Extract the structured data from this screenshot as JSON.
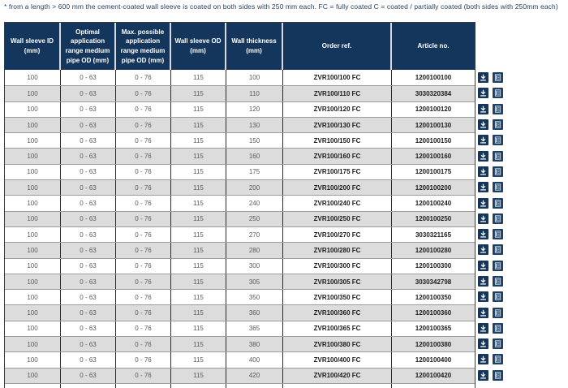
{
  "note": "* from a length > 600 mm the cement-coated wall sleeve is coated on both sides with 250 mm each. FC = fully coated C = coated / partially coated (both sides with 250mm each)",
  "table": {
    "columns": [
      "Wall sleeve ID\n(mm)",
      "Optimal\napplication\nrange medium\npipe OD (mm)",
      "Max. possible\napplication\nrange medium\npipe OD (mm)",
      "Wall sleeve OD\n(mm)",
      "Wall thickness\n(mm)",
      "Order ref.",
      "Article no."
    ],
    "rows": [
      [
        "100",
        "0 - 63",
        "0 - 76",
        "115",
        "100",
        "ZVR100/100 FC",
        "1200100100"
      ],
      [
        "100",
        "0 - 63",
        "0 - 76",
        "115",
        "110",
        "ZVR100/110 FC",
        "3030320384"
      ],
      [
        "100",
        "0 - 63",
        "0 - 76",
        "115",
        "120",
        "ZVR100/120 FC",
        "1200100120"
      ],
      [
        "100",
        "0 - 63",
        "0 - 76",
        "115",
        "130",
        "ZVR100/130 FC",
        "1200100130"
      ],
      [
        "100",
        "0 - 63",
        "0 - 76",
        "115",
        "150",
        "ZVR100/150 FC",
        "1200100150"
      ],
      [
        "100",
        "0 - 63",
        "0 - 76",
        "115",
        "160",
        "ZVR100/160 FC",
        "1200100160"
      ],
      [
        "100",
        "0 - 63",
        "0 - 76",
        "115",
        "175",
        "ZVR100/175 FC",
        "1200100175"
      ],
      [
        "100",
        "0 - 63",
        "0 - 76",
        "115",
        "200",
        "ZVR100/200 FC",
        "1200100200"
      ],
      [
        "100",
        "0 - 63",
        "0 - 76",
        "115",
        "240",
        "ZVR100/240 FC",
        "1200100240"
      ],
      [
        "100",
        "0 - 63",
        "0 - 76",
        "115",
        "250",
        "ZVR100/250 FC",
        "1200100250"
      ],
      [
        "100",
        "0 - 63",
        "0 - 76",
        "115",
        "270",
        "ZVR100/270 FC",
        "3030321165"
      ],
      [
        "100",
        "0 - 63",
        "0 - 76",
        "115",
        "280",
        "ZVR100/280 FC",
        "1200100280"
      ],
      [
        "100",
        "0 - 63",
        "0 - 76",
        "115",
        "300",
        "ZVR100/300 FC",
        "1200100300"
      ],
      [
        "100",
        "0 - 63",
        "0 - 76",
        "115",
        "305",
        "ZVR100/305 FC",
        "3030342798"
      ],
      [
        "100",
        "0 - 63",
        "0 - 76",
        "115",
        "350",
        "ZVR100/350 FC",
        "1200100350"
      ],
      [
        "100",
        "0 - 63",
        "0 - 76",
        "115",
        "360",
        "ZVR100/360 FC",
        "1200100360"
      ],
      [
        "100",
        "0 - 63",
        "0 - 76",
        "115",
        "365",
        "ZVR100/365 FC",
        "1200100365"
      ],
      [
        "100",
        "0 - 63",
        "0 - 76",
        "115",
        "380",
        "ZVR100/380 FC",
        "1200100380"
      ],
      [
        "100",
        "0 - 63",
        "0 - 76",
        "115",
        "400",
        "ZVR100/400 FC",
        "1200100400"
      ],
      [
        "100",
        "0 - 63",
        "0 - 76",
        "115",
        "420",
        "ZVR100/420 FC",
        "1200100420"
      ]
    ],
    "bold_columns": [
      5,
      6
    ],
    "row_actions": [
      {
        "name": "download-icon"
      },
      {
        "name": "datasheet-icon"
      }
    ]
  },
  "colors": {
    "header_bg": "#14365c",
    "alt_row_bg": "#dcdcdc",
    "header_text": "#ffffff",
    "body_text": "#5a5a5a",
    "bold_text": "#1a1a1a",
    "note_text": "#27425e"
  }
}
